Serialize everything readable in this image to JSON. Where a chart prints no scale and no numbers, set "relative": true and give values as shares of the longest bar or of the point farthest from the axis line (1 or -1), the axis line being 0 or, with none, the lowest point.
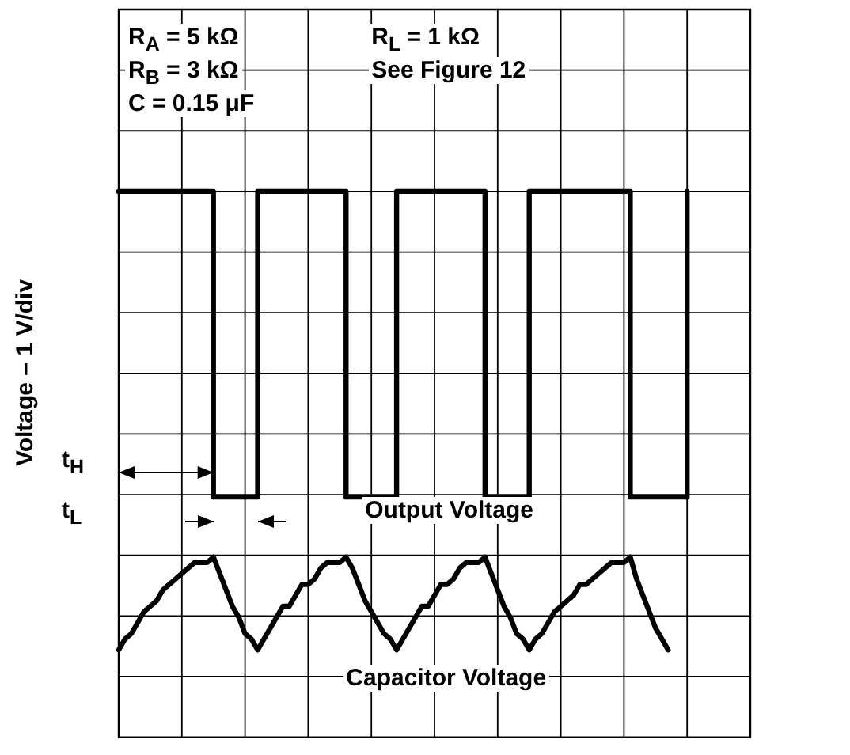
{
  "chart_data": {
    "type": "line",
    "relative": true,
    "ylabel": "Voltage – 1 V/div",
    "grid": true,
    "legend": false,
    "marker": "none",
    "line_style": "solid",
    "categories": [
      null,
      null,
      null,
      null,
      null,
      null,
      null,
      null,
      null,
      null,
      null,
      null,
      null,
      null,
      null,
      null,
      null,
      null,
      null,
      null,
      null,
      null,
      null,
      null,
      null,
      null,
      null,
      null,
      null,
      null,
      null,
      null,
      null,
      null,
      null,
      null,
      null,
      null,
      null,
      null,
      null,
      null,
      null,
      null,
      null,
      null,
      null,
      null,
      null,
      null,
      null,
      null,
      null,
      null,
      null,
      null,
      null,
      null,
      null,
      null,
      null,
      null,
      null,
      null,
      null,
      null,
      null,
      null,
      null,
      null,
      null,
      null,
      null,
      null,
      null,
      null,
      null,
      null,
      null,
      null,
      null,
      null,
      null,
      null,
      null,
      null,
      null,
      null,
      null,
      null,
      null,
      null,
      null,
      null,
      null,
      null,
      null,
      null,
      null,
      null,
      null
    ],
    "series": [
      {
        "type": "step",
        "color": "#000000",
        "values": [
          1,
          1,
          1,
          1,
          1,
          1,
          1,
          1,
          1,
          1,
          1,
          1,
          1,
          1,
          1,
          0.44,
          0.44,
          0.44,
          0.44,
          0.44,
          0.44,
          0.44,
          1,
          1,
          1,
          1,
          1,
          1,
          1,
          1,
          1,
          1,
          1,
          1,
          1,
          1,
          0.44,
          0.44,
          0.44,
          0.44,
          0.44,
          0.44,
          0.44,
          0.44,
          1,
          1,
          1,
          1,
          1,
          1,
          1,
          1,
          1,
          1,
          1,
          1,
          1,
          1,
          0.44,
          0.44,
          0.44,
          0.44,
          0.44,
          0.44,
          0.44,
          1,
          1,
          1,
          1,
          1,
          1,
          1,
          1,
          1,
          1,
          1,
          1,
          1,
          1,
          1,
          1,
          0.44,
          0.44,
          0.44,
          0.44,
          0.44,
          0.44,
          0.44,
          0.44,
          0.44,
          1,
          null,
          null,
          null,
          null,
          null,
          null,
          null,
          null,
          null,
          null
        ]
      },
      {
        "color": "#000000",
        "values": [
          0.16,
          0.18,
          0.19,
          0.21,
          0.23,
          0.24,
          0.25,
          0.27,
          0.28,
          0.29,
          0.3,
          0.31,
          0.32,
          0.32,
          0.32,
          0.33,
          0.3,
          0.27,
          0.24,
          0.22,
          0.19,
          0.18,
          0.16,
          0.18,
          0.2,
          0.22,
          0.24,
          0.24,
          0.26,
          0.28,
          0.28,
          0.29,
          0.31,
          0.32,
          0.32,
          0.32,
          0.33,
          0.31,
          0.28,
          0.25,
          0.23,
          0.21,
          0.19,
          0.18,
          0.16,
          0.18,
          0.2,
          0.22,
          0.24,
          0.24,
          0.26,
          0.28,
          0.28,
          0.29,
          0.31,
          0.32,
          0.32,
          0.32,
          0.33,
          0.3,
          0.27,
          0.24,
          0.22,
          0.19,
          0.18,
          0.16,
          0.18,
          0.19,
          0.21,
          0.23,
          0.24,
          0.25,
          0.26,
          0.28,
          0.28,
          0.29,
          0.3,
          0.31,
          0.32,
          0.32,
          0.32,
          0.33,
          0.29,
          0.26,
          0.23,
          0.2,
          0.18,
          0.16,
          null,
          null,
          null,
          null,
          null,
          null,
          null,
          null,
          null,
          null,
          null,
          null,
          null
        ]
      }
    ],
    "annotations": [
      "R$_{A}$ = 5 kΩ",
      "R$_{B}$ = 3 kΩ",
      "C = 0.15 μF",
      "R$_{L}$ = 1 kΩ",
      "See Figure 12",
      "t$_{H}$",
      "t$_{L}$",
      "Output Voltage",
      "Capacitor Voltage"
    ]
  }
}
